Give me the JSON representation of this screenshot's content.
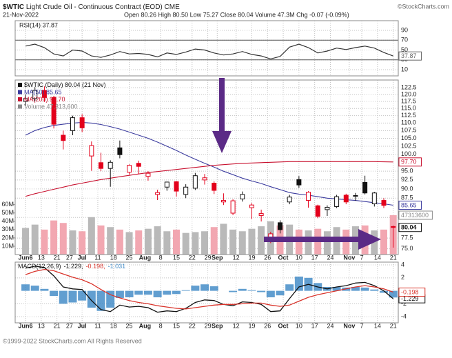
{
  "header": {
    "symbol": "$WTIC",
    "name": "Light Crude Oil - Continuous Contract (EOD) CME",
    "brand": "©StockCharts.com",
    "date": "21-Nov-2022",
    "stats": "Open 80.26 High 80.50 Low 75.27 Close 80.04 Volume 47.3M Chg -0.07 (-0.09%)"
  },
  "footer": "©1999-2022 StockCharts.com All Rights Reserved",
  "chart_data": [
    {
      "type": "line",
      "ylim": [
        -2.6,
        109.7
      ],
      "yticks": [
        90,
        70,
        50,
        30,
        10
      ],
      "bands": [
        70,
        30
      ],
      "grid": true,
      "series": [
        {
          "name": "RSI(14) 37.87",
          "color": "#333333",
          "end_label": "37.87",
          "values": [
            58,
            62,
            55,
            42,
            38,
            50,
            48,
            38,
            35,
            40,
            47,
            42,
            43,
            41,
            36,
            44,
            41,
            46,
            52,
            50,
            44,
            40,
            42,
            47,
            41,
            38,
            32,
            37,
            56,
            62,
            55,
            44,
            48,
            54,
            51,
            55,
            58,
            54,
            45,
            37.87
          ]
        }
      ]
    },
    {
      "type": "candlestick",
      "name": "$WTIC (Daily) 80.04 (21 Nov)",
      "end_label": "80.04",
      "log": true,
      "grid": true,
      "up_color": "#111111",
      "down_color": "#e3001b",
      "xlim": [
        -3.3,
        118.6
      ],
      "xticks": [
        {
          "value": 0,
          "label": "Jun6"
        },
        {
          "value": 5,
          "label": "13"
        },
        {
          "value": 10,
          "label": "21"
        },
        {
          "value": 14,
          "label": "27"
        },
        {
          "value": 18,
          "label": "Jul"
        },
        {
          "value": 23,
          "label": "11"
        },
        {
          "value": 28,
          "label": "18"
        },
        {
          "value": 33,
          "label": "25"
        },
        {
          "value": 38,
          "label": "Aug"
        },
        {
          "value": 43,
          "label": "8"
        },
        {
          "value": 48,
          "label": "15"
        },
        {
          "value": 53,
          "label": "22"
        },
        {
          "value": 58,
          "label": "29"
        },
        {
          "value": 61,
          "label": "Sep"
        },
        {
          "value": 67,
          "label": "12"
        },
        {
          "value": 72,
          "label": "19"
        },
        {
          "value": 77,
          "label": "26"
        },
        {
          "value": 82,
          "label": "Oct"
        },
        {
          "value": 87,
          "label": "10"
        },
        {
          "value": 92,
          "label": "17"
        },
        {
          "value": 97,
          "label": "24"
        },
        {
          "value": 103,
          "label": "Nov"
        },
        {
          "value": 107,
          "label": "7"
        },
        {
          "value": 112,
          "label": "14"
        },
        {
          "value": 117,
          "label": "21"
        }
      ],
      "ylim": [
        73.7,
        125.4
      ],
      "yticks": [
        122.5,
        {
          "value": 120,
          "label": "120.0"
        },
        117.5,
        {
          "value": 115,
          "label": "115.0"
        },
        112.5,
        {
          "value": 110,
          "label": "110.0"
        },
        107.5,
        {
          "value": 105,
          "label": "105.0"
        },
        102.5,
        {
          "value": 100,
          "label": "100.0"
        },
        {
          "value": 95,
          "label": "95.0"
        },
        92.5,
        {
          "value": 90,
          "label": "90.0"
        },
        87.5,
        82.5,
        77.5,
        {
          "value": 75,
          "label": "75.0"
        }
      ],
      "x": [
        0,
        3,
        6,
        9,
        12,
        15,
        18,
        21,
        24,
        27,
        30,
        33,
        36,
        39,
        42,
        45,
        48,
        51,
        54,
        57,
        60,
        63,
        66,
        69,
        72,
        75,
        78,
        81,
        84,
        87,
        90,
        93,
        96,
        99,
        102,
        105,
        108,
        111,
        114,
        117
      ],
      "open": [
        117.5,
        118.5,
        121.5,
        118.9,
        106,
        107.5,
        111.8,
        99.5,
        97.5,
        95.8,
        102,
        94.7,
        97.3,
        93.5,
        88.5,
        90.5,
        92,
        88.5,
        90.2,
        92.5,
        91.6,
        86.5,
        83.6,
        87.3,
        85,
        83,
        76.7,
        81.2,
        86.5,
        92.6,
        86.9,
        85.5,
        84.5,
        85.3,
        88.3,
        88,
        91.8,
        86,
        86.9,
        80.26
      ],
      "high": [
        120,
        122.7,
        123,
        119.5,
        107.5,
        112.5,
        113,
        104,
        100.5,
        98.2,
        104.3,
        97,
        98.1,
        95,
        89.8,
        92,
        92.2,
        91.3,
        94.5,
        94.2,
        92.1,
        88.8,
        87.2,
        89.3,
        86.2,
        84.5,
        79,
        81.8,
        88.4,
        93.6,
        89.4,
        85.8,
        85.6,
        88.4,
        88.7,
        88.9,
        93.7,
        89.2,
        87.5,
        80.5
      ],
      "low": [
        116,
        117.5,
        117.3,
        108.2,
        101.5,
        106,
        107,
        95.1,
        95,
        90.6,
        98.8,
        94,
        94.2,
        92.3,
        87,
        89.5,
        87.9,
        87.5,
        89.7,
        91.2,
        88.6,
        85.7,
        83.1,
        86.6,
        82.1,
        81.5,
        76.3,
        78.6,
        85.9,
        90.3,
        85,
        82.3,
        82.9,
        84.9,
        85.9,
        86.8,
        88.5,
        85.3,
        84.9,
        75.27
      ],
      "close": [
        118.5,
        121.5,
        118.9,
        109.6,
        104.3,
        111.8,
        108.4,
        102.7,
        95.8,
        97.6,
        99.9,
        96.7,
        96.4,
        94.4,
        89,
        91.9,
        89.4,
        90.5,
        93.7,
        93.1,
        89.6,
        86.9,
        86.8,
        88.5,
        85.7,
        83.5,
        78.5,
        79.5,
        87.8,
        91.1,
        89.1,
        82.8,
        85.1,
        87.9,
        86.5,
        88.2,
        88.9,
        88.9,
        85.6,
        80.04
      ],
      "series": [
        {
          "name": "MA(50) 85.65",
          "color": "#3b3b9e",
          "end_label": "85.65",
          "values": [
            106,
            107.5,
            108.5,
            109.2,
            109.6,
            110,
            110.2,
            110,
            109.5,
            108.8,
            108,
            107,
            106,
            105,
            103.8,
            102.5,
            101.2,
            99.8,
            98.5,
            97.3,
            96.2,
            95,
            94,
            93,
            92.2,
            91.5,
            90.6,
            89.8,
            89,
            88.6,
            88.3,
            87.9,
            87.5,
            87.3,
            87.1,
            86.9,
            86.6,
            86.3,
            86,
            85.65
          ]
        },
        {
          "name": "MA(200) 97.70",
          "color": "#c8102e",
          "end_label": "97.70",
          "values": [
            88,
            88.7,
            89.3,
            89.9,
            90.5,
            91.1,
            91.6,
            92.1,
            92.6,
            93,
            93.4,
            93.8,
            94.2,
            94.6,
            94.9,
            95.2,
            95.5,
            95.8,
            96.1,
            96.4,
            96.7,
            96.9,
            97.1,
            97.3,
            97.4,
            97.5,
            97.6,
            97.7,
            97.8,
            97.8,
            97.8,
            97.8,
            97.8,
            97.8,
            97.8,
            97.8,
            97.8,
            97.8,
            97.75,
            97.7
          ]
        }
      ],
      "volume": {
        "name": "Volume 47,313,600",
        "color": "#b9b9b9",
        "down_color": "#f2a7b1",
        "end_label": "47313600",
        "vlim": [
          0,
          210000000
        ],
        "vticks": [
          {
            "value": 60000000,
            "label": "60M"
          },
          {
            "value": 50000000,
            "label": "50M"
          },
          {
            "value": 40000000,
            "label": "40M"
          },
          {
            "value": 30000000,
            "label": "30M"
          },
          {
            "value": 20000000,
            "label": "20M"
          },
          {
            "value": 10000000,
            "label": "10M"
          }
        ],
        "values": [
          32000000,
          36000000,
          30000000,
          41000000,
          38000000,
          29000000,
          28000000,
          45000000,
          35000000,
          33000000,
          30000000,
          27000000,
          29000000,
          31000000,
          34000000,
          28000000,
          30000000,
          26000000,
          27000000,
          28000000,
          33000000,
          37000000,
          30000000,
          28000000,
          31000000,
          34000000,
          40000000,
          35000000,
          36000000,
          30000000,
          29000000,
          31000000,
          28000000,
          33000000,
          30000000,
          34000000,
          35000000,
          29000000,
          30000000,
          47313600
        ]
      }
    },
    {
      "type": "macd",
      "title": "MACD(12,26,9)",
      "ylim": [
        -4.94,
        4.43
      ],
      "yticks": [
        4,
        2,
        -2,
        -4
      ],
      "grid": true,
      "series": [
        {
          "name": "-1.229,",
          "kind": "line",
          "color": "#111111",
          "end_label": "-1.229",
          "values": [
            3.5,
            3.8,
            3.6,
            2.3,
            0.6,
            0.3,
            0.2,
            -1.5,
            -2.9,
            -3.2,
            -2.2,
            -2.5,
            -2.4,
            -2.6,
            -3.3,
            -3.1,
            -3.2,
            -2.7,
            -1.8,
            -1.4,
            -1.5,
            -2.1,
            -2.3,
            -1.7,
            -1.8,
            -2.1,
            -3.2,
            -3.1,
            -1.2,
            0.6,
            1.0,
            0.6,
            0.3,
            0.6,
            0.8,
            1.2,
            1.3,
            0.8,
            0.0,
            -1.229
          ]
        },
        {
          "name": "-0.198,",
          "kind": "line",
          "color": "#d9342b",
          "end_label": "-0.198",
          "values": [
            2.5,
            3.0,
            3.3,
            3.1,
            2.6,
            2.1,
            1.7,
            1.1,
            0.2,
            -0.6,
            -1.1,
            -1.5,
            -1.8,
            -2.0,
            -2.3,
            -2.5,
            -2.7,
            -2.8,
            -2.6,
            -2.4,
            -2.2,
            -2.1,
            -2.1,
            -2.0,
            -1.9,
            -1.9,
            -2.2,
            -2.4,
            -2.2,
            -1.6,
            -1.0,
            -0.6,
            -0.3,
            0.0,
            0.3,
            0.6,
            0.8,
            0.6,
            0.3,
            -0.198
          ]
        },
        {
          "name": "-1.031",
          "kind": "histogram",
          "color": "#3a86c4",
          "values": [
            1.0,
            0.8,
            0.3,
            -0.8,
            -2.0,
            -1.8,
            -1.5,
            -2.6,
            -3.1,
            -2.6,
            -1.1,
            -1.0,
            -0.6,
            -0.6,
            -1.0,
            -0.6,
            -0.5,
            0.1,
            0.8,
            1.0,
            0.7,
            0.0,
            -0.2,
            0.3,
            0.1,
            -0.2,
            -1.0,
            -0.7,
            1.0,
            2.2,
            2.0,
            1.2,
            0.6,
            0.6,
            0.5,
            0.6,
            0.5,
            0.2,
            -0.3,
            -1.031
          ]
        }
      ]
    }
  ]
}
